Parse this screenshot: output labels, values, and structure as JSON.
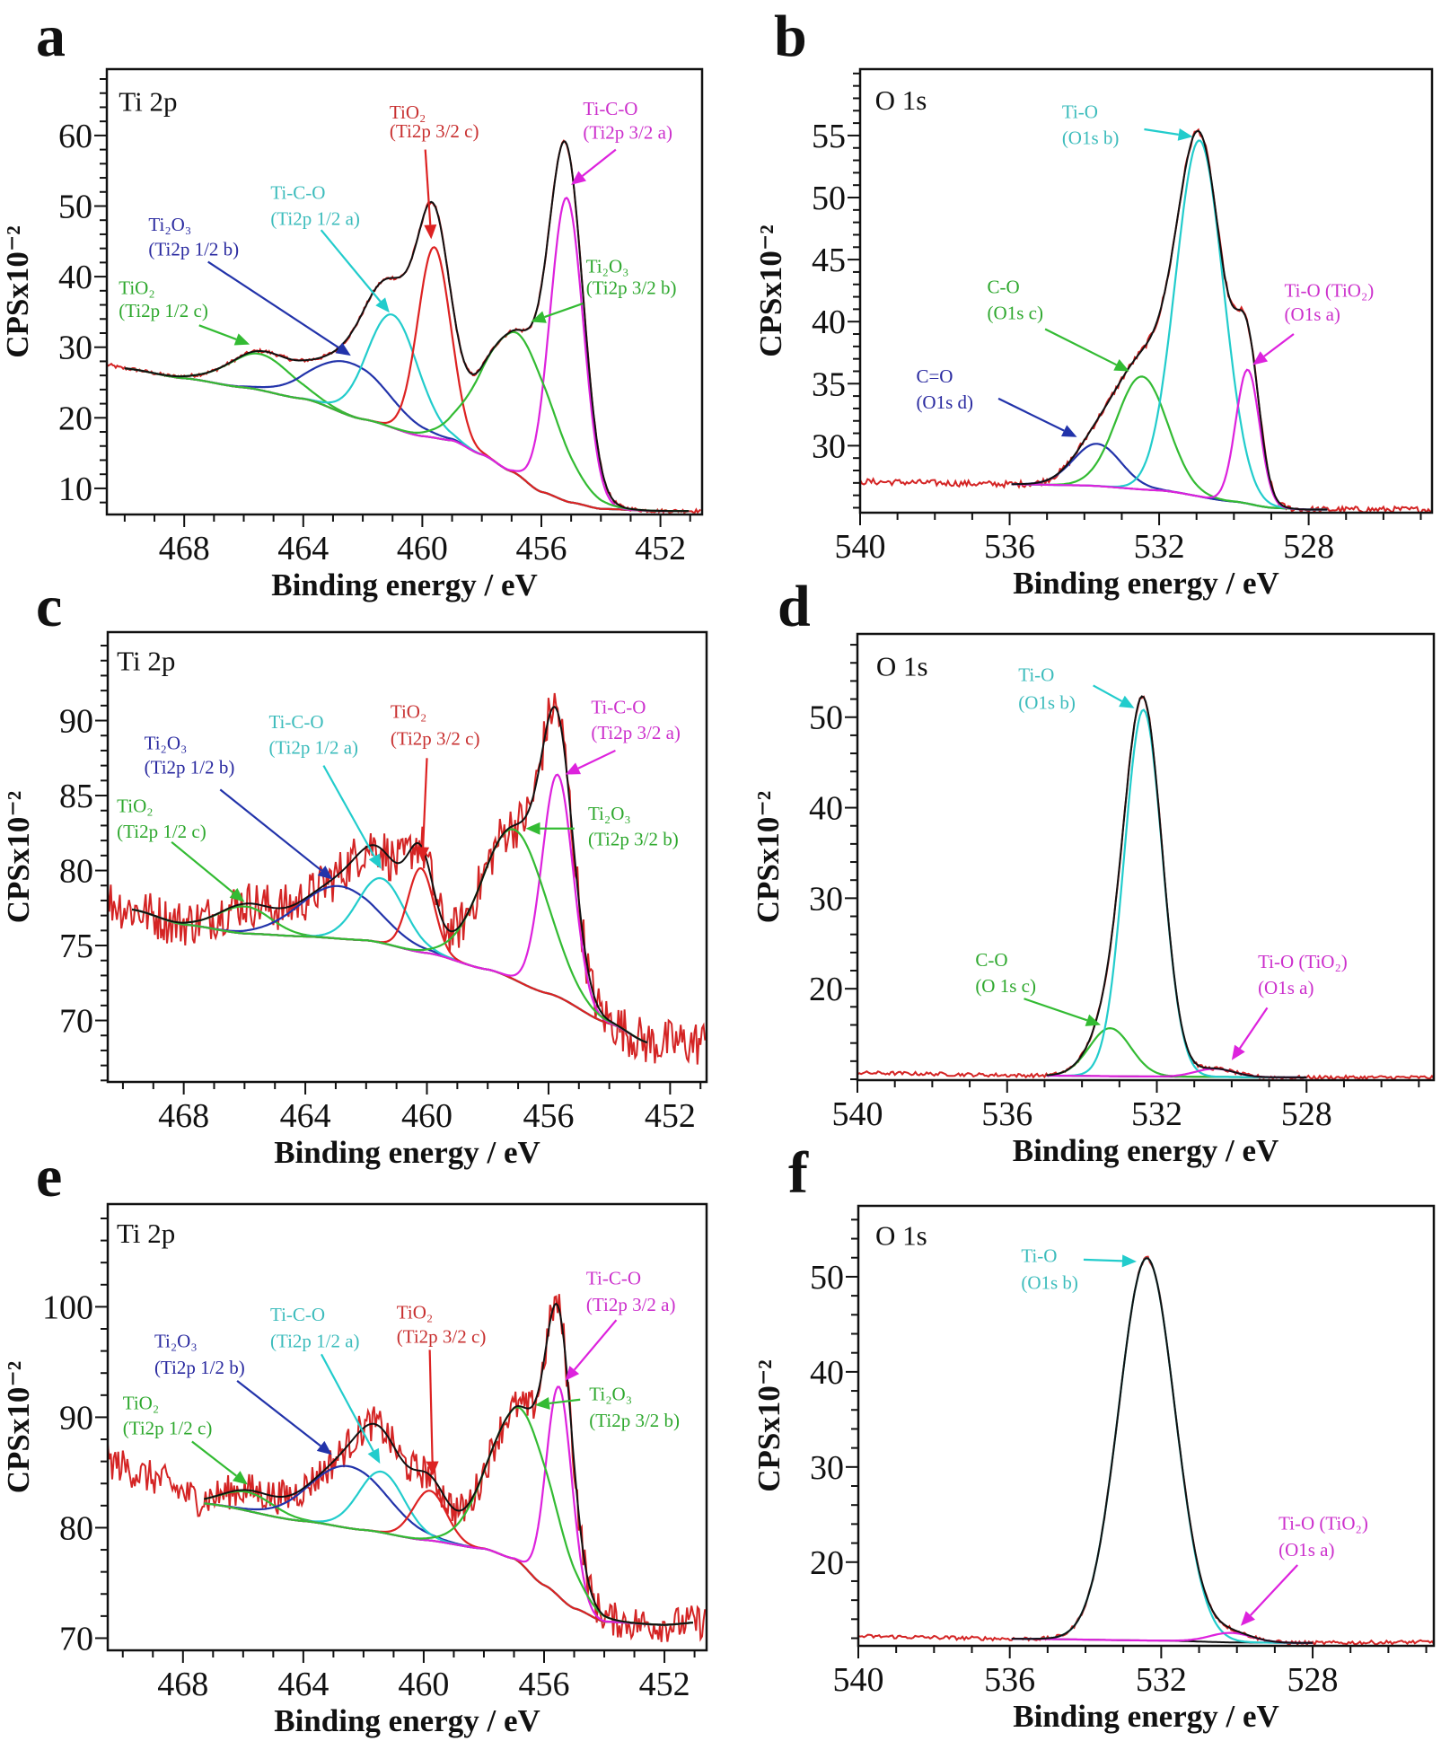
{
  "chart_data": [
    {
      "type": "line",
      "panel_label": "a",
      "region_label": "Ti 2p",
      "xlabel": "Binding energy / eV",
      "ylabel": "CPSx10⁻²",
      "xlim": [
        470.6,
        450.6
      ],
      "ylim": [
        6.3,
        69.4
      ],
      "xticks": [
        468,
        464,
        460,
        456,
        452
      ],
      "yticks": [
        10,
        20,
        30,
        40,
        50,
        60
      ],
      "fit_range": [
        470.0,
        451.0
      ],
      "background": [
        [
          470.6,
          27.5
        ],
        [
          470,
          27
        ],
        [
          468,
          25.6
        ],
        [
          466,
          24.3
        ],
        [
          464,
          22.7
        ],
        [
          462,
          19.8
        ],
        [
          460,
          17.4
        ],
        [
          459,
          16.8
        ],
        [
          458,
          14.8
        ],
        [
          457,
          12.4
        ],
        [
          456,
          9.5
        ],
        [
          455,
          8
        ],
        [
          454,
          7.1
        ],
        [
          452,
          6.8
        ],
        [
          450.6,
          6.8
        ]
      ],
      "peaks": [
        {
          "lines": [
            "TiO₂",
            "(Ti2p 1/2 c)"
          ],
          "color": "#33bb33",
          "text_color": "#2ea82e",
          "center": 465.45,
          "height": 5.1,
          "fwhm": 2.5
        },
        {
          "lines": [
            "Ti₂O₃",
            "(Ti2p 1/2 b)"
          ],
          "color": "#2233aa",
          "text_color": "#2a2aa0",
          "center": 462.4,
          "height": 7.5,
          "fwhm": 3.0
        },
        {
          "lines": [
            "Ti-C-O",
            "(Ti2p 1/2 a)"
          ],
          "color": "#22cccc",
          "text_color": "#3cbcbc",
          "center": 461.0,
          "height": 16,
          "fwhm": 2.0
        },
        {
          "lines": [
            "TiO₂",
            "(Ti2p 3/2 c)"
          ],
          "color": "#dd2222",
          "text_color": "#c83030",
          "center": 459.6,
          "height": 27,
          "fwhm": 1.3
        },
        {
          "lines": [
            "Ti-C-O",
            "(Ti2p 3/2 a)"
          ],
          "color": "#dd22dd",
          "text_color": "#cc30cc",
          "center": 455.15,
          "height": 43,
          "fwhm": 1.3
        },
        {
          "lines": [
            "Ti₂O₃",
            "(Ti2p 3/2 b)"
          ],
          "color": "#33bb33",
          "text_color": "#2ea82e",
          "center": 456.8,
          "height": 20,
          "fwhm": 2.8
        }
      ]
    },
    {
      "type": "line",
      "panel_label": "b",
      "region_label": "O 1s",
      "xlabel": "Binding energy / eV",
      "ylabel": "CPSx10⁻²",
      "xlim": [
        540,
        524.7
      ],
      "ylim": [
        24.6,
        60.35
      ],
      "xticks": [
        540,
        536,
        532,
        528
      ],
      "yticks": [
        30,
        35,
        40,
        45,
        50,
        55
      ],
      "fit_range": [
        536.0,
        527.5
      ],
      "background": [
        [
          540,
          27.1
        ],
        [
          536,
          26.9
        ],
        [
          534,
          26.8
        ],
        [
          532,
          26.4
        ],
        [
          530,
          25.5
        ],
        [
          529,
          25.0
        ],
        [
          528,
          24.85
        ],
        [
          524.7,
          24.85
        ]
      ],
      "peaks": [
        {
          "lines": [
            "C=O",
            "(O1s d)"
          ],
          "color": "#2233aa",
          "text_color": "#2a2aa0",
          "center": 533.66,
          "height": 3.4,
          "fwhm": 1.5
        },
        {
          "lines": [
            "C-O",
            "(O1s c)"
          ],
          "color": "#33bb33",
          "text_color": "#2ea82e",
          "center": 532.46,
          "height": 9.1,
          "fwhm": 1.6
        },
        {
          "lines": [
            "Ti-O",
            "(O1s b)"
          ],
          "color": "#22cccc",
          "text_color": "#3cbcbc",
          "center": 530.92,
          "height": 28.7,
          "fwhm": 1.5
        },
        {
          "lines": [
            "Ti-O (TiO₂)",
            "(O1s a)"
          ],
          "color": "#dd22dd",
          "text_color": "#cc30cc",
          "center": 529.63,
          "height": 10.8,
          "fwhm": 0.75
        }
      ]
    },
    {
      "type": "line",
      "panel_label": "c",
      "region_label": "Ti 2p",
      "xlabel": "Binding energy / eV",
      "ylabel": "CPSx10⁻²",
      "xlim": [
        470.5,
        450.8
      ],
      "ylim": [
        65.9,
        95.9
      ],
      "xticks": [
        468,
        464,
        460,
        456,
        452
      ],
      "yticks": [
        70,
        75,
        80,
        85,
        90
      ],
      "fit_range": [
        469.7,
        452.7
      ],
      "background": [
        [
          470.5,
          78.0
        ],
        [
          469.7,
          77.4
        ],
        [
          468,
          76.4
        ],
        [
          466,
          75.8
        ],
        [
          464,
          75.6
        ],
        [
          462,
          75.35
        ],
        [
          460,
          74.5
        ],
        [
          458,
          73.4
        ],
        [
          456,
          71.8
        ],
        [
          454,
          69.8
        ],
        [
          452.7,
          68.5
        ],
        [
          450.8,
          68.5
        ]
      ],
      "peaks": [
        {
          "lines": [
            "TiO₂",
            "(Ti2p 1/2 c)"
          ],
          "color": "#33bb33",
          "text_color": "#2ea82e",
          "center": 466.0,
          "height": 1.8,
          "fwhm": 2.0
        },
        {
          "lines": [
            "Ti₂O₃",
            "(Ti2p 1/2 b)"
          ],
          "color": "#2233aa",
          "text_color": "#2a2aa0",
          "center": 462.9,
          "height": 3.5,
          "fwhm": 3.0
        },
        {
          "lines": [
            "Ti-C-O",
            "(Ti2p 1/2 a)"
          ],
          "color": "#22cccc",
          "text_color": "#3cbcbc",
          "center": 461.5,
          "height": 4.3,
          "fwhm": 1.8
        },
        {
          "lines": [
            "TiO₂",
            "(Ti2p 3/2 c)"
          ],
          "color": "#dd2222",
          "text_color": "#c83030",
          "center": 460.2,
          "height": 5.6,
          "fwhm": 1.0
        },
        {
          "lines": [
            "Ti-C-O",
            "(Ti2p 3/2 a)"
          ],
          "color": "#dd22dd",
          "text_color": "#cc30cc",
          "center": 455.7,
          "height": 14.8,
          "fwhm": 1.2
        },
        {
          "lines": [
            "Ti₂O₃",
            "(Ti2p 3/2 b)"
          ],
          "color": "#33bb33",
          "text_color": "#2ea82e",
          "center": 457.1,
          "height": 10,
          "fwhm": 2.5
        }
      ]
    },
    {
      "type": "line",
      "panel_label": "d",
      "region_label": "O 1s",
      "xlabel": "Binding energy / eV",
      "ylabel": "CPSx10⁻²",
      "xlim": [
        540,
        524.6
      ],
      "ylim": [
        9.9,
        59.2
      ],
      "xticks": [
        540,
        536,
        532,
        528
      ],
      "yticks": [
        20,
        30,
        40,
        50
      ],
      "fit_range": [
        535.0,
        528.0
      ],
      "background": [
        [
          540,
          10.7
        ],
        [
          535,
          10.4
        ],
        [
          532,
          10.3
        ],
        [
          528,
          10.2
        ],
        [
          524.6,
          10.2
        ]
      ],
      "peaks": [
        {
          "lines": [
            "C-O",
            "(O 1s c)"
          ],
          "color": "#33bb33",
          "text_color": "#2ea82e",
          "center": 533.25,
          "height": 5.3,
          "fwhm": 1.3
        },
        {
          "lines": [
            "Ti-O",
            "(O1s b)"
          ],
          "color": "#22cccc",
          "text_color": "#3cbcbc",
          "center": 532.36,
          "height": 40.5,
          "fwhm": 1.2
        },
        {
          "lines": [
            "Ti-O (TiO₂)",
            "(O1s a)"
          ],
          "color": "#dd22dd",
          "text_color": "#cc30cc",
          "center": 530.45,
          "height": 0.9,
          "fwhm": 1.2
        }
      ]
    },
    {
      "type": "line",
      "panel_label": "e",
      "region_label": "Ti 2p",
      "xlabel": "Binding energy / eV",
      "ylabel": "CPSx10⁻²",
      "xlim": [
        470.5,
        450.6
      ],
      "ylim": [
        68.9,
        109.3
      ],
      "xticks": [
        468,
        464,
        460,
        456,
        452
      ],
      "yticks": [
        70,
        80,
        90,
        100
      ],
      "fit_range": [
        467.3,
        451.0
      ],
      "background": [
        [
          470.5,
          86
        ],
        [
          469,
          84.5
        ],
        [
          467.3,
          82.2
        ],
        [
          464,
          80.6
        ],
        [
          462,
          79.8
        ],
        [
          460,
          78.9
        ],
        [
          458,
          78.1
        ],
        [
          457,
          77.2
        ],
        [
          456,
          74.8
        ],
        [
          455,
          72.7
        ],
        [
          454,
          71.5
        ],
        [
          452,
          71.2
        ],
        [
          450.6,
          71.5
        ]
      ],
      "peaks": [
        {
          "lines": [
            "TiO₂",
            "(Ti2p 1/2 c)"
          ],
          "color": "#33bb33",
          "text_color": "#2ea82e",
          "center": 465.85,
          "height": 1.7,
          "fwhm": 2.0
        },
        {
          "lines": [
            "Ti₂O₃",
            "(Ti2p 1/2 b)"
          ],
          "color": "#2233aa",
          "text_color": "#2a2aa0",
          "center": 462.5,
          "height": 5.6,
          "fwhm": 3.0
        },
        {
          "lines": [
            "Ti-C-O",
            "(Ti2p 1/2 a)"
          ],
          "color": "#22cccc",
          "text_color": "#3cbcbc",
          "center": 461.4,
          "height": 5.5,
          "fwhm": 1.8
        },
        {
          "lines": [
            "TiO₂",
            "(Ti2p 3/2 c)"
          ],
          "color": "#dd2222",
          "text_color": "#c83030",
          "center": 459.8,
          "height": 4.5,
          "fwhm": 1.3
        },
        {
          "lines": [
            "Ti-C-O",
            "(Ti2p 3/2 a)"
          ],
          "color": "#dd22dd",
          "text_color": "#cc30cc",
          "center": 455.5,
          "height": 19,
          "fwhm": 1.0
        },
        {
          "lines": [
            "Ti₂O₃",
            "(Ti2p 3/2 b)"
          ],
          "color": "#33bb33",
          "text_color": "#2ea82e",
          "center": 456.75,
          "height": 14,
          "fwhm": 2.5
        }
      ]
    },
    {
      "type": "line",
      "panel_label": "f",
      "region_label": "O 1s",
      "xlabel": "Binding energy / eV",
      "ylabel": "CPSx10⁻²",
      "xlim": [
        540,
        524.8
      ],
      "ylim": [
        11.2,
        57.45
      ],
      "xticks": [
        540,
        536,
        532,
        528
      ],
      "yticks": [
        20,
        30,
        40,
        50
      ],
      "fit_range": [
        536.0,
        528.0
      ],
      "background": [
        [
          540,
          12.2
        ],
        [
          536,
          11.95
        ],
        [
          532,
          11.75
        ],
        [
          530,
          11.55
        ],
        [
          528,
          11.5
        ],
        [
          524.8,
          11.6
        ]
      ],
      "peaks": [
        {
          "lines": [
            "Ti-O",
            "(O1s b)"
          ],
          "color": "#22cccc",
          "text_color": "#3cbcbc",
          "center": 532.38,
          "height": 40.2,
          "fwhm": 1.75
        },
        {
          "lines": [
            "Ti-O (TiO₂)",
            "(O1s a)"
          ],
          "color": "#dd22dd",
          "text_color": "#cc30cc",
          "center": 530.16,
          "height": 1.0,
          "fwhm": 1.3
        }
      ]
    }
  ],
  "colors": {
    "measured": "#d42424",
    "envelope": "#111111",
    "background": "#111111",
    "frame": "#111111"
  }
}
